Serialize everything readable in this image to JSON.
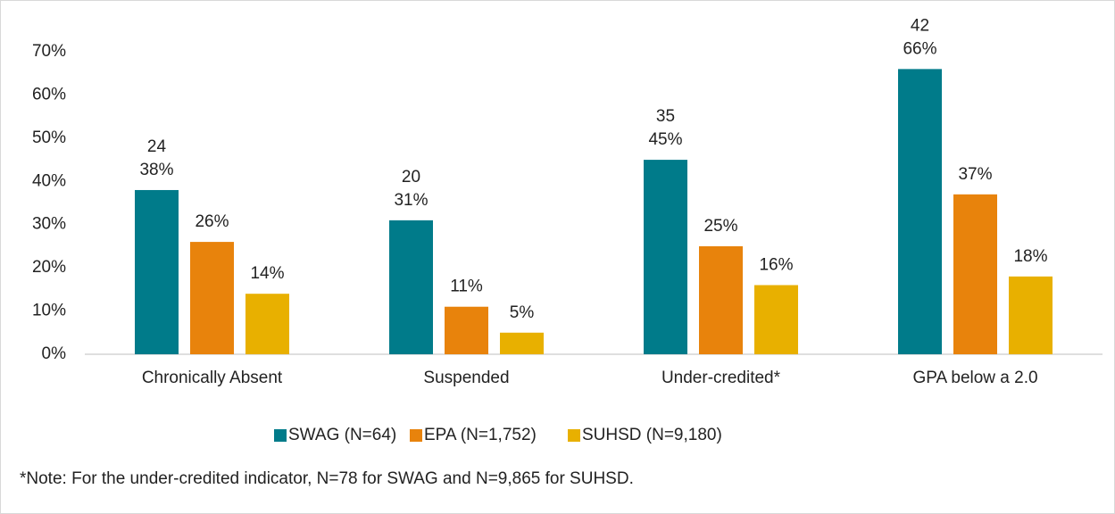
{
  "chart_data": {
    "type": "bar",
    "categories": [
      "Chronically Absent",
      "Suspended",
      "Under-credited*",
      "GPA below a 2.0"
    ],
    "series": [
      {
        "name": "SWAG (N=64)",
        "color": "#007b8a",
        "values": [
          38,
          31,
          45,
          66
        ],
        "value_labels": [
          "38%",
          "31%",
          "45%",
          "66%"
        ],
        "counts": [
          24,
          20,
          35,
          42
        ]
      },
      {
        "name": "EPA (N=1,752)",
        "color": "#e8830c",
        "values": [
          26,
          11,
          25,
          37
        ],
        "value_labels": [
          "26%",
          "11%",
          "25%",
          "37%"
        ]
      },
      {
        "name": "SUHSD (N=9,180)",
        "color": "#e8b000",
        "values": [
          14,
          5,
          16,
          18
        ],
        "value_labels": [
          "14%",
          "5%",
          "16%",
          "18%"
        ]
      }
    ],
    "ylim": [
      0,
      70
    ],
    "yticks": [
      {
        "value": 0,
        "label": "0%"
      },
      {
        "value": 10,
        "label": "10%"
      },
      {
        "value": 20,
        "label": "20%"
      },
      {
        "value": 30,
        "label": "30%"
      },
      {
        "value": 40,
        "label": "40%"
      },
      {
        "value": 50,
        "label": "50%"
      },
      {
        "value": 60,
        "label": "60%"
      },
      {
        "value": 70,
        "label": "70%"
      }
    ],
    "grid": false,
    "legend": "bottom",
    "note": "*Note: For the under-credited indicator, N=78 for SWAG and N=9,865 for SUHSD."
  }
}
